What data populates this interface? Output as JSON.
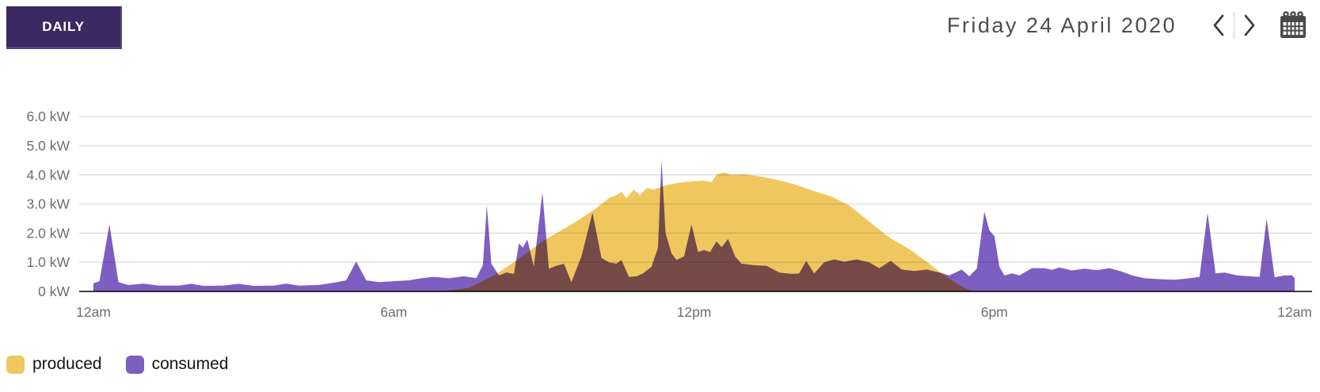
{
  "header": {
    "view_label": "DAILY",
    "date_label": "Friday 24 April 2020",
    "prev_icon": "chevron-left",
    "next_icon": "chevron-right",
    "calendar_icon": "calendar"
  },
  "colors": {
    "view_button_bg": "#3a2a61",
    "produced": "#f0c75e",
    "consumed": "#7d5ec1",
    "overlap_rendered": "#7a4b44",
    "gridline": "#dddddd",
    "zero_line": "#3f3f3f",
    "axis_text": "#6e6e6e",
    "date_text": "#4d4d4d"
  },
  "chart_data": {
    "type": "area",
    "title": "",
    "xlabel": "",
    "ylabel": "",
    "x_unit": "hour-of-day",
    "y_unit": "kW",
    "xlim": [
      0,
      24
    ],
    "ylim": [
      0,
      6
    ],
    "grid": true,
    "legend_position": "bottom-left",
    "yticks": [
      {
        "value": 0,
        "label": "0 kW"
      },
      {
        "value": 1,
        "label": "1.0 kW"
      },
      {
        "value": 2,
        "label": "2.0 kW"
      },
      {
        "value": 3,
        "label": "3.0 kW"
      },
      {
        "value": 4,
        "label": "4.0 kW"
      },
      {
        "value": 5,
        "label": "5.0 kW"
      },
      {
        "value": 6,
        "label": "6.0 kW"
      }
    ],
    "xticks": [
      {
        "hour": 0,
        "label": "12am"
      },
      {
        "hour": 6,
        "label": "6am"
      },
      {
        "hour": 12,
        "label": "12pm"
      },
      {
        "hour": 18,
        "label": "6pm"
      },
      {
        "hour": 24,
        "label": "12am"
      }
    ],
    "series": [
      {
        "name": "produced",
        "color": "#f0c75e",
        "blend": "multiply",
        "points": [
          [
            0,
            0
          ],
          [
            6.9,
            0
          ],
          [
            7.1,
            0.04
          ],
          [
            7.5,
            0.12
          ],
          [
            8.0,
            0.55
          ],
          [
            8.4,
            1.0
          ],
          [
            9.0,
            1.75
          ],
          [
            9.6,
            2.35
          ],
          [
            10.0,
            2.8
          ],
          [
            10.3,
            3.2
          ],
          [
            10.45,
            3.3
          ],
          [
            10.55,
            3.42
          ],
          [
            10.65,
            3.2
          ],
          [
            10.8,
            3.5
          ],
          [
            10.92,
            3.3
          ],
          [
            11.05,
            3.55
          ],
          [
            11.2,
            3.5
          ],
          [
            11.4,
            3.62
          ],
          [
            11.6,
            3.7
          ],
          [
            11.8,
            3.75
          ],
          [
            12.0,
            3.78
          ],
          [
            12.2,
            3.8
          ],
          [
            12.35,
            3.75
          ],
          [
            12.45,
            4.0
          ],
          [
            12.6,
            4.08
          ],
          [
            12.75,
            4.0
          ],
          [
            13.0,
            4.02
          ],
          [
            13.3,
            3.95
          ],
          [
            13.6,
            3.85
          ],
          [
            13.95,
            3.7
          ],
          [
            14.3,
            3.5
          ],
          [
            14.75,
            3.25
          ],
          [
            15.1,
            2.95
          ],
          [
            15.5,
            2.4
          ],
          [
            15.9,
            1.85
          ],
          [
            16.3,
            1.45
          ],
          [
            16.7,
            0.95
          ],
          [
            17.0,
            0.55
          ],
          [
            17.3,
            0.22
          ],
          [
            17.5,
            0.04
          ],
          [
            17.6,
            0
          ],
          [
            24,
            0
          ]
        ]
      },
      {
        "name": "consumed",
        "color": "#7d5ec1",
        "blend": "multiply",
        "points": [
          [
            0,
            0.28
          ],
          [
            0.12,
            0.35
          ],
          [
            0.32,
            2.3
          ],
          [
            0.5,
            0.32
          ],
          [
            0.7,
            0.22
          ],
          [
            1.0,
            0.27
          ],
          [
            1.3,
            0.2
          ],
          [
            1.7,
            0.2
          ],
          [
            1.95,
            0.26
          ],
          [
            2.2,
            0.19
          ],
          [
            2.6,
            0.2
          ],
          [
            2.9,
            0.26
          ],
          [
            3.2,
            0.19
          ],
          [
            3.6,
            0.2
          ],
          [
            3.85,
            0.27
          ],
          [
            4.1,
            0.2
          ],
          [
            4.5,
            0.22
          ],
          [
            4.8,
            0.3
          ],
          [
            5.05,
            0.38
          ],
          [
            5.25,
            1.03
          ],
          [
            5.45,
            0.38
          ],
          [
            5.7,
            0.32
          ],
          [
            6.0,
            0.35
          ],
          [
            6.3,
            0.38
          ],
          [
            6.55,
            0.45
          ],
          [
            6.8,
            0.5
          ],
          [
            7.1,
            0.45
          ],
          [
            7.4,
            0.52
          ],
          [
            7.65,
            0.46
          ],
          [
            7.78,
            0.9
          ],
          [
            7.86,
            2.95
          ],
          [
            7.95,
            0.95
          ],
          [
            8.1,
            0.55
          ],
          [
            8.25,
            0.65
          ],
          [
            8.4,
            0.6
          ],
          [
            8.5,
            1.65
          ],
          [
            8.58,
            1.5
          ],
          [
            8.67,
            1.78
          ],
          [
            8.8,
            0.85
          ],
          [
            8.97,
            3.4
          ],
          [
            9.1,
            0.78
          ],
          [
            9.25,
            0.88
          ],
          [
            9.4,
            0.95
          ],
          [
            9.55,
            0.32
          ],
          [
            9.75,
            1.2
          ],
          [
            9.97,
            2.7
          ],
          [
            10.15,
            1.15
          ],
          [
            10.3,
            1.0
          ],
          [
            10.45,
            0.95
          ],
          [
            10.55,
            1.08
          ],
          [
            10.7,
            0.5
          ],
          [
            10.85,
            0.52
          ],
          [
            10.98,
            0.62
          ],
          [
            11.15,
            0.85
          ],
          [
            11.28,
            1.5
          ],
          [
            11.35,
            4.5
          ],
          [
            11.43,
            2.0
          ],
          [
            11.55,
            1.3
          ],
          [
            11.65,
            1.08
          ],
          [
            11.8,
            1.2
          ],
          [
            11.95,
            2.3
          ],
          [
            12.08,
            1.35
          ],
          [
            12.2,
            1.42
          ],
          [
            12.32,
            1.35
          ],
          [
            12.45,
            1.72
          ],
          [
            12.55,
            1.52
          ],
          [
            12.68,
            1.8
          ],
          [
            12.82,
            1.2
          ],
          [
            12.95,
            0.95
          ],
          [
            13.2,
            0.9
          ],
          [
            13.45,
            0.88
          ],
          [
            13.7,
            0.65
          ],
          [
            13.95,
            0.6
          ],
          [
            14.1,
            0.62
          ],
          [
            14.24,
            1.05
          ],
          [
            14.4,
            0.62
          ],
          [
            14.6,
            1.0
          ],
          [
            14.8,
            1.1
          ],
          [
            15.0,
            1.02
          ],
          [
            15.25,
            1.1
          ],
          [
            15.5,
            1.0
          ],
          [
            15.7,
            0.8
          ],
          [
            15.93,
            1.05
          ],
          [
            16.15,
            0.75
          ],
          [
            16.4,
            0.7
          ],
          [
            16.65,
            0.75
          ],
          [
            16.9,
            0.65
          ],
          [
            17.1,
            0.55
          ],
          [
            17.35,
            0.75
          ],
          [
            17.5,
            0.52
          ],
          [
            17.65,
            0.78
          ],
          [
            17.8,
            2.74
          ],
          [
            17.9,
            2.1
          ],
          [
            18.0,
            1.9
          ],
          [
            18.1,
            0.85
          ],
          [
            18.2,
            0.55
          ],
          [
            18.35,
            0.62
          ],
          [
            18.5,
            0.55
          ],
          [
            18.75,
            0.8
          ],
          [
            19.0,
            0.8
          ],
          [
            19.15,
            0.74
          ],
          [
            19.3,
            0.82
          ],
          [
            19.55,
            0.72
          ],
          [
            19.8,
            0.78
          ],
          [
            20.05,
            0.73
          ],
          [
            20.3,
            0.8
          ],
          [
            20.55,
            0.68
          ],
          [
            20.75,
            0.55
          ],
          [
            21.0,
            0.45
          ],
          [
            21.3,
            0.42
          ],
          [
            21.6,
            0.4
          ],
          [
            21.9,
            0.45
          ],
          [
            22.1,
            0.5
          ],
          [
            22.26,
            2.7
          ],
          [
            22.42,
            0.62
          ],
          [
            22.6,
            0.65
          ],
          [
            22.85,
            0.55
          ],
          [
            23.1,
            0.52
          ],
          [
            23.3,
            0.5
          ],
          [
            23.44,
            2.5
          ],
          [
            23.6,
            0.48
          ],
          [
            23.8,
            0.55
          ],
          [
            23.95,
            0.55
          ],
          [
            24,
            0.45
          ]
        ]
      }
    ]
  }
}
